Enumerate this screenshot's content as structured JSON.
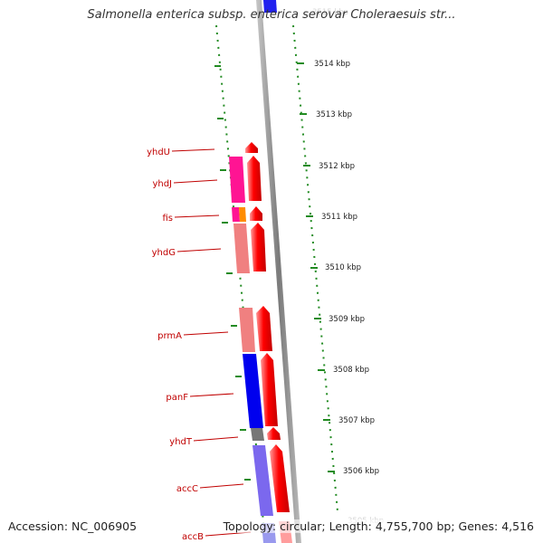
{
  "title": "Salmonella enterica subsp. enterica serovar Choleraesuis str...",
  "footer": {
    "accession": "Accession: NC_006905",
    "stats": "Topology: circular; Length: 4,755,700 bp; Genes: 4,516"
  },
  "ticks": [
    {
      "label": "3515 kbp",
      "faded": true
    },
    {
      "label": "3514 kbp"
    },
    {
      "label": "3513 kbp"
    },
    {
      "label": "3512 kbp"
    },
    {
      "label": "3511 kbp"
    },
    {
      "label": "3510 kbp"
    },
    {
      "label": "3509 kbp"
    },
    {
      "label": "3508 kbp"
    },
    {
      "label": "3507 kbp"
    },
    {
      "label": "3506 kbp"
    },
    {
      "label": "3505 kbp",
      "faded": true
    }
  ],
  "gene_labels": [
    "yhdU",
    "yhdJ",
    "fis",
    "yhdG",
    "prmA",
    "panF",
    "yhdT",
    "accC",
    "accB"
  ],
  "colors": {
    "forward_gene": "#ff0000",
    "reverse_gene": "#0000ff",
    "backbone": "#888888",
    "tick_marks": "#228b22",
    "label_text": "#c00000"
  }
}
